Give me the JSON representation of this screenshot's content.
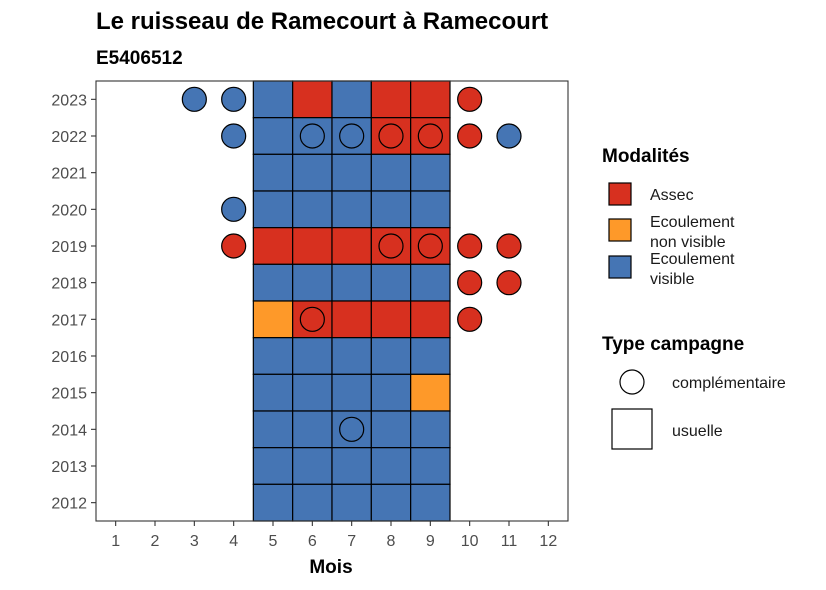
{
  "chart_data": {
    "type": "heatmap",
    "title": "Le ruisseau de Ramecourt à Ramecourt",
    "subtitle": "E5406512",
    "xlabel": "Mois",
    "ylabel": "",
    "x_ticks": [
      "1",
      "2",
      "3",
      "4",
      "5",
      "6",
      "7",
      "8",
      "9",
      "10",
      "11",
      "12"
    ],
    "y_ticks": [
      "2012",
      "2013",
      "2014",
      "2015",
      "2016",
      "2017",
      "2018",
      "2019",
      "2020",
      "2021",
      "2022",
      "2023"
    ],
    "xlim": [
      0.5,
      12.5
    ],
    "ylim": [
      2011.5,
      2023.5
    ],
    "colors": {
      "Assec": "#d7301f",
      "Ecoulement non visible": "#fe9929",
      "Ecoulement visible": "#4575b4"
    },
    "legend": {
      "modalites_title": "Modalités",
      "modalites": [
        {
          "key": "Assec",
          "lines": [
            "Assec"
          ]
        },
        {
          "key": "Ecoulement non visible",
          "lines": [
            "Ecoulement",
            "non visible"
          ]
        },
        {
          "key": "Ecoulement visible",
          "lines": [
            "Ecoulement",
            "visible"
          ]
        }
      ],
      "type_title": "Type campagne",
      "types": [
        {
          "key": "complementaire",
          "label": "complémentaire",
          "shape": "circle"
        },
        {
          "key": "usuelle",
          "label": "usuelle",
          "shape": "square"
        }
      ]
    },
    "usuelle": [
      {
        "year": 2023,
        "months": [
          "Ecoulement visible",
          "Assec",
          "Ecoulement visible",
          "Assec",
          "Assec"
        ]
      },
      {
        "year": 2022,
        "months": [
          "Ecoulement visible",
          "Ecoulement visible",
          "Ecoulement visible",
          "Assec",
          "Assec"
        ]
      },
      {
        "year": 2021,
        "months": [
          "Ecoulement visible",
          "Ecoulement visible",
          "Ecoulement visible",
          "Ecoulement visible",
          "Ecoulement visible"
        ]
      },
      {
        "year": 2020,
        "months": [
          "Ecoulement visible",
          "Ecoulement visible",
          "Ecoulement visible",
          "Ecoulement visible",
          "Ecoulement visible"
        ]
      },
      {
        "year": 2019,
        "months": [
          "Assec",
          "Assec",
          "Assec",
          "Assec",
          "Assec"
        ]
      },
      {
        "year": 2018,
        "months": [
          "Ecoulement visible",
          "Ecoulement visible",
          "Ecoulement visible",
          "Ecoulement visible",
          "Ecoulement visible"
        ]
      },
      {
        "year": 2017,
        "months": [
          "Ecoulement non visible",
          "Assec",
          "Assec",
          "Assec",
          "Assec"
        ]
      },
      {
        "year": 2016,
        "months": [
          "Ecoulement visible",
          "Ecoulement visible",
          "Ecoulement visible",
          "Ecoulement visible",
          "Ecoulement visible"
        ]
      },
      {
        "year": 2015,
        "months": [
          "Ecoulement visible",
          "Ecoulement visible",
          "Ecoulement visible",
          "Ecoulement visible",
          "Ecoulement non visible"
        ]
      },
      {
        "year": 2014,
        "months": [
          "Ecoulement visible",
          "Ecoulement visible",
          "Ecoulement visible",
          "Ecoulement visible",
          "Ecoulement visible"
        ]
      },
      {
        "year": 2013,
        "months": [
          "Ecoulement visible",
          "Ecoulement visible",
          "Ecoulement visible",
          "Ecoulement visible",
          "Ecoulement visible"
        ]
      },
      {
        "year": 2012,
        "months": [
          "Ecoulement visible",
          "Ecoulement visible",
          "Ecoulement visible",
          "Ecoulement visible",
          "Ecoulement visible"
        ]
      }
    ],
    "usuelle_months": [
      5,
      6,
      7,
      8,
      9
    ],
    "complementaire": [
      {
        "year": 2023,
        "month": 3,
        "value": "Ecoulement visible"
      },
      {
        "year": 2023,
        "month": 4,
        "value": "Ecoulement visible"
      },
      {
        "year": 2023,
        "month": 10,
        "value": "Assec"
      },
      {
        "year": 2022,
        "month": 4,
        "value": "Ecoulement visible"
      },
      {
        "year": 2022,
        "month": 6,
        "value": "Ecoulement visible"
      },
      {
        "year": 2022,
        "month": 7,
        "value": "Ecoulement visible"
      },
      {
        "year": 2022,
        "month": 8,
        "value": "Assec"
      },
      {
        "year": 2022,
        "month": 9,
        "value": "Assec"
      },
      {
        "year": 2022,
        "month": 10,
        "value": "Assec"
      },
      {
        "year": 2022,
        "month": 11,
        "value": "Ecoulement visible"
      },
      {
        "year": 2020,
        "month": 4,
        "value": "Ecoulement visible"
      },
      {
        "year": 2019,
        "month": 4,
        "value": "Assec"
      },
      {
        "year": 2019,
        "month": 8,
        "value": "Assec"
      },
      {
        "year": 2019,
        "month": 9,
        "value": "Assec"
      },
      {
        "year": 2019,
        "month": 10,
        "value": "Assec"
      },
      {
        "year": 2019,
        "month": 11,
        "value": "Assec"
      },
      {
        "year": 2018,
        "month": 10,
        "value": "Assec"
      },
      {
        "year": 2018,
        "month": 11,
        "value": "Assec"
      },
      {
        "year": 2017,
        "month": 6,
        "value": "Assec"
      },
      {
        "year": 2017,
        "month": 10,
        "value": "Assec"
      },
      {
        "year": 2014,
        "month": 7,
        "value": "Ecoulement visible"
      }
    ]
  }
}
